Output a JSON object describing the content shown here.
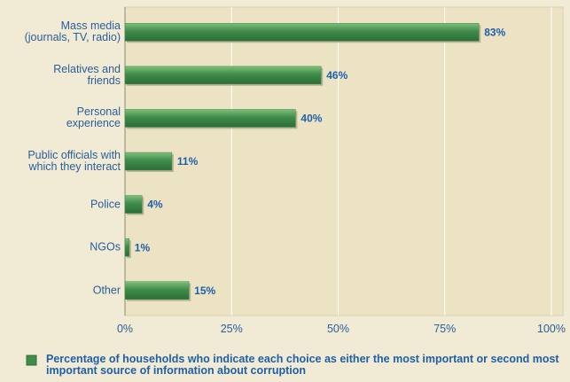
{
  "chart_data": {
    "type": "bar",
    "orientation": "horizontal",
    "categories": [
      "Mass media\n(journals, TV, radio)",
      "Relatives and\nfriends",
      "Personal\nexperience",
      "Public officials with\nwhich they interact",
      "Police",
      "NGOs",
      "Other"
    ],
    "series": [
      {
        "name": "Percentage of households who indicate each choice as either the most important or second most important source of information about corruption",
        "color": "#3f8c4b",
        "values": [
          83,
          46,
          40,
          11,
          4,
          1,
          15
        ],
        "value_labels": [
          "83%",
          "46%",
          "40%",
          "11%",
          "4%",
          "1%",
          "15%"
        ]
      }
    ],
    "xlim": [
      0,
      100
    ],
    "xticks": [
      {
        "value": 0,
        "label": "0%"
      },
      {
        "value": 25,
        "label": "25%"
      },
      {
        "value": 50,
        "label": "50%"
      },
      {
        "value": 75,
        "label": "75%"
      },
      {
        "value": 100,
        "label": "100%"
      }
    ],
    "grid": true,
    "legend": "bottom"
  }
}
